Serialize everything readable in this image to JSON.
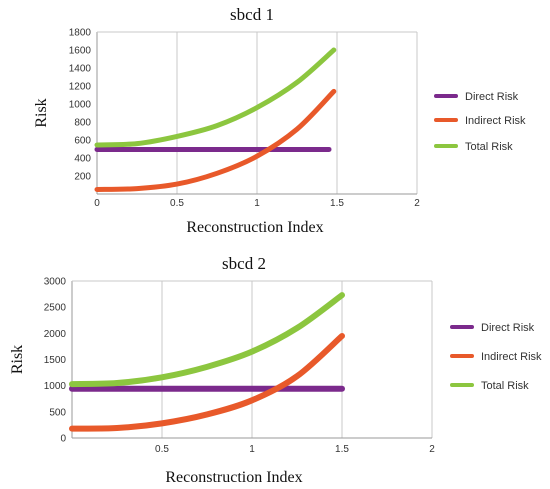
{
  "chart_data": [
    {
      "type": "line",
      "title": "sbcd 1",
      "xlabel": "Reconstruction Index",
      "ylabel": "Risk",
      "xlim": [
        0,
        2
      ],
      "ylim": [
        0,
        1800
      ],
      "xticks": [
        "0",
        "0.5",
        "1",
        "1.5",
        "2"
      ],
      "yticks": [
        "200",
        "400",
        "600",
        "800",
        "1000",
        "1200",
        "1400",
        "1600",
        "1800"
      ],
      "grid": "vertical",
      "legend": "right",
      "series": [
        {
          "name": "Direct Risk",
          "color": "#7b2a8c",
          "x": [
            0,
            0.25,
            0.5,
            0.75,
            1,
            1.25,
            1.45
          ],
          "y": [
            495,
            495,
            495,
            495,
            495,
            495,
            495
          ]
        },
        {
          "name": "Indirect Risk",
          "color": "#e8592a",
          "x": [
            0,
            0.25,
            0.5,
            0.75,
            1,
            1.25,
            1.48
          ],
          "y": [
            50,
            60,
            110,
            230,
            420,
            720,
            1140
          ]
        },
        {
          "name": "Total Risk",
          "color": "#8cc63f",
          "x": [
            0,
            0.25,
            0.5,
            0.75,
            1,
            1.25,
            1.48
          ],
          "y": [
            545,
            560,
            640,
            760,
            960,
            1240,
            1600
          ]
        }
      ]
    },
    {
      "type": "line",
      "title": "sbcd 2",
      "xlabel": "Reconstruction Index",
      "ylabel": "Risk",
      "xlim": [
        0,
        2
      ],
      "ylim": [
        0,
        3000
      ],
      "xticks": [
        "0.5",
        "1",
        "1.5",
        "2"
      ],
      "yticks": [
        "0",
        "500",
        "1000",
        "1500",
        "2000",
        "2500",
        "3000"
      ],
      "grid": "vertical",
      "legend": "right",
      "series": [
        {
          "name": "Direct Risk",
          "color": "#7b2a8c",
          "x": [
            0,
            0.25,
            0.5,
            0.75,
            1,
            1.25,
            1.5
          ],
          "y": [
            940,
            940,
            940,
            940,
            940,
            940,
            940
          ]
        },
        {
          "name": "Indirect Risk",
          "color": "#e8592a",
          "x": [
            0,
            0.25,
            0.5,
            0.75,
            1,
            1.25,
            1.5
          ],
          "y": [
            180,
            190,
            280,
            450,
            720,
            1180,
            1950
          ]
        },
        {
          "name": "Total Risk",
          "color": "#8cc63f",
          "x": [
            0,
            0.25,
            0.5,
            0.75,
            1,
            1.25,
            1.5
          ],
          "y": [
            1030,
            1050,
            1160,
            1360,
            1650,
            2100,
            2730
          ]
        }
      ]
    }
  ]
}
